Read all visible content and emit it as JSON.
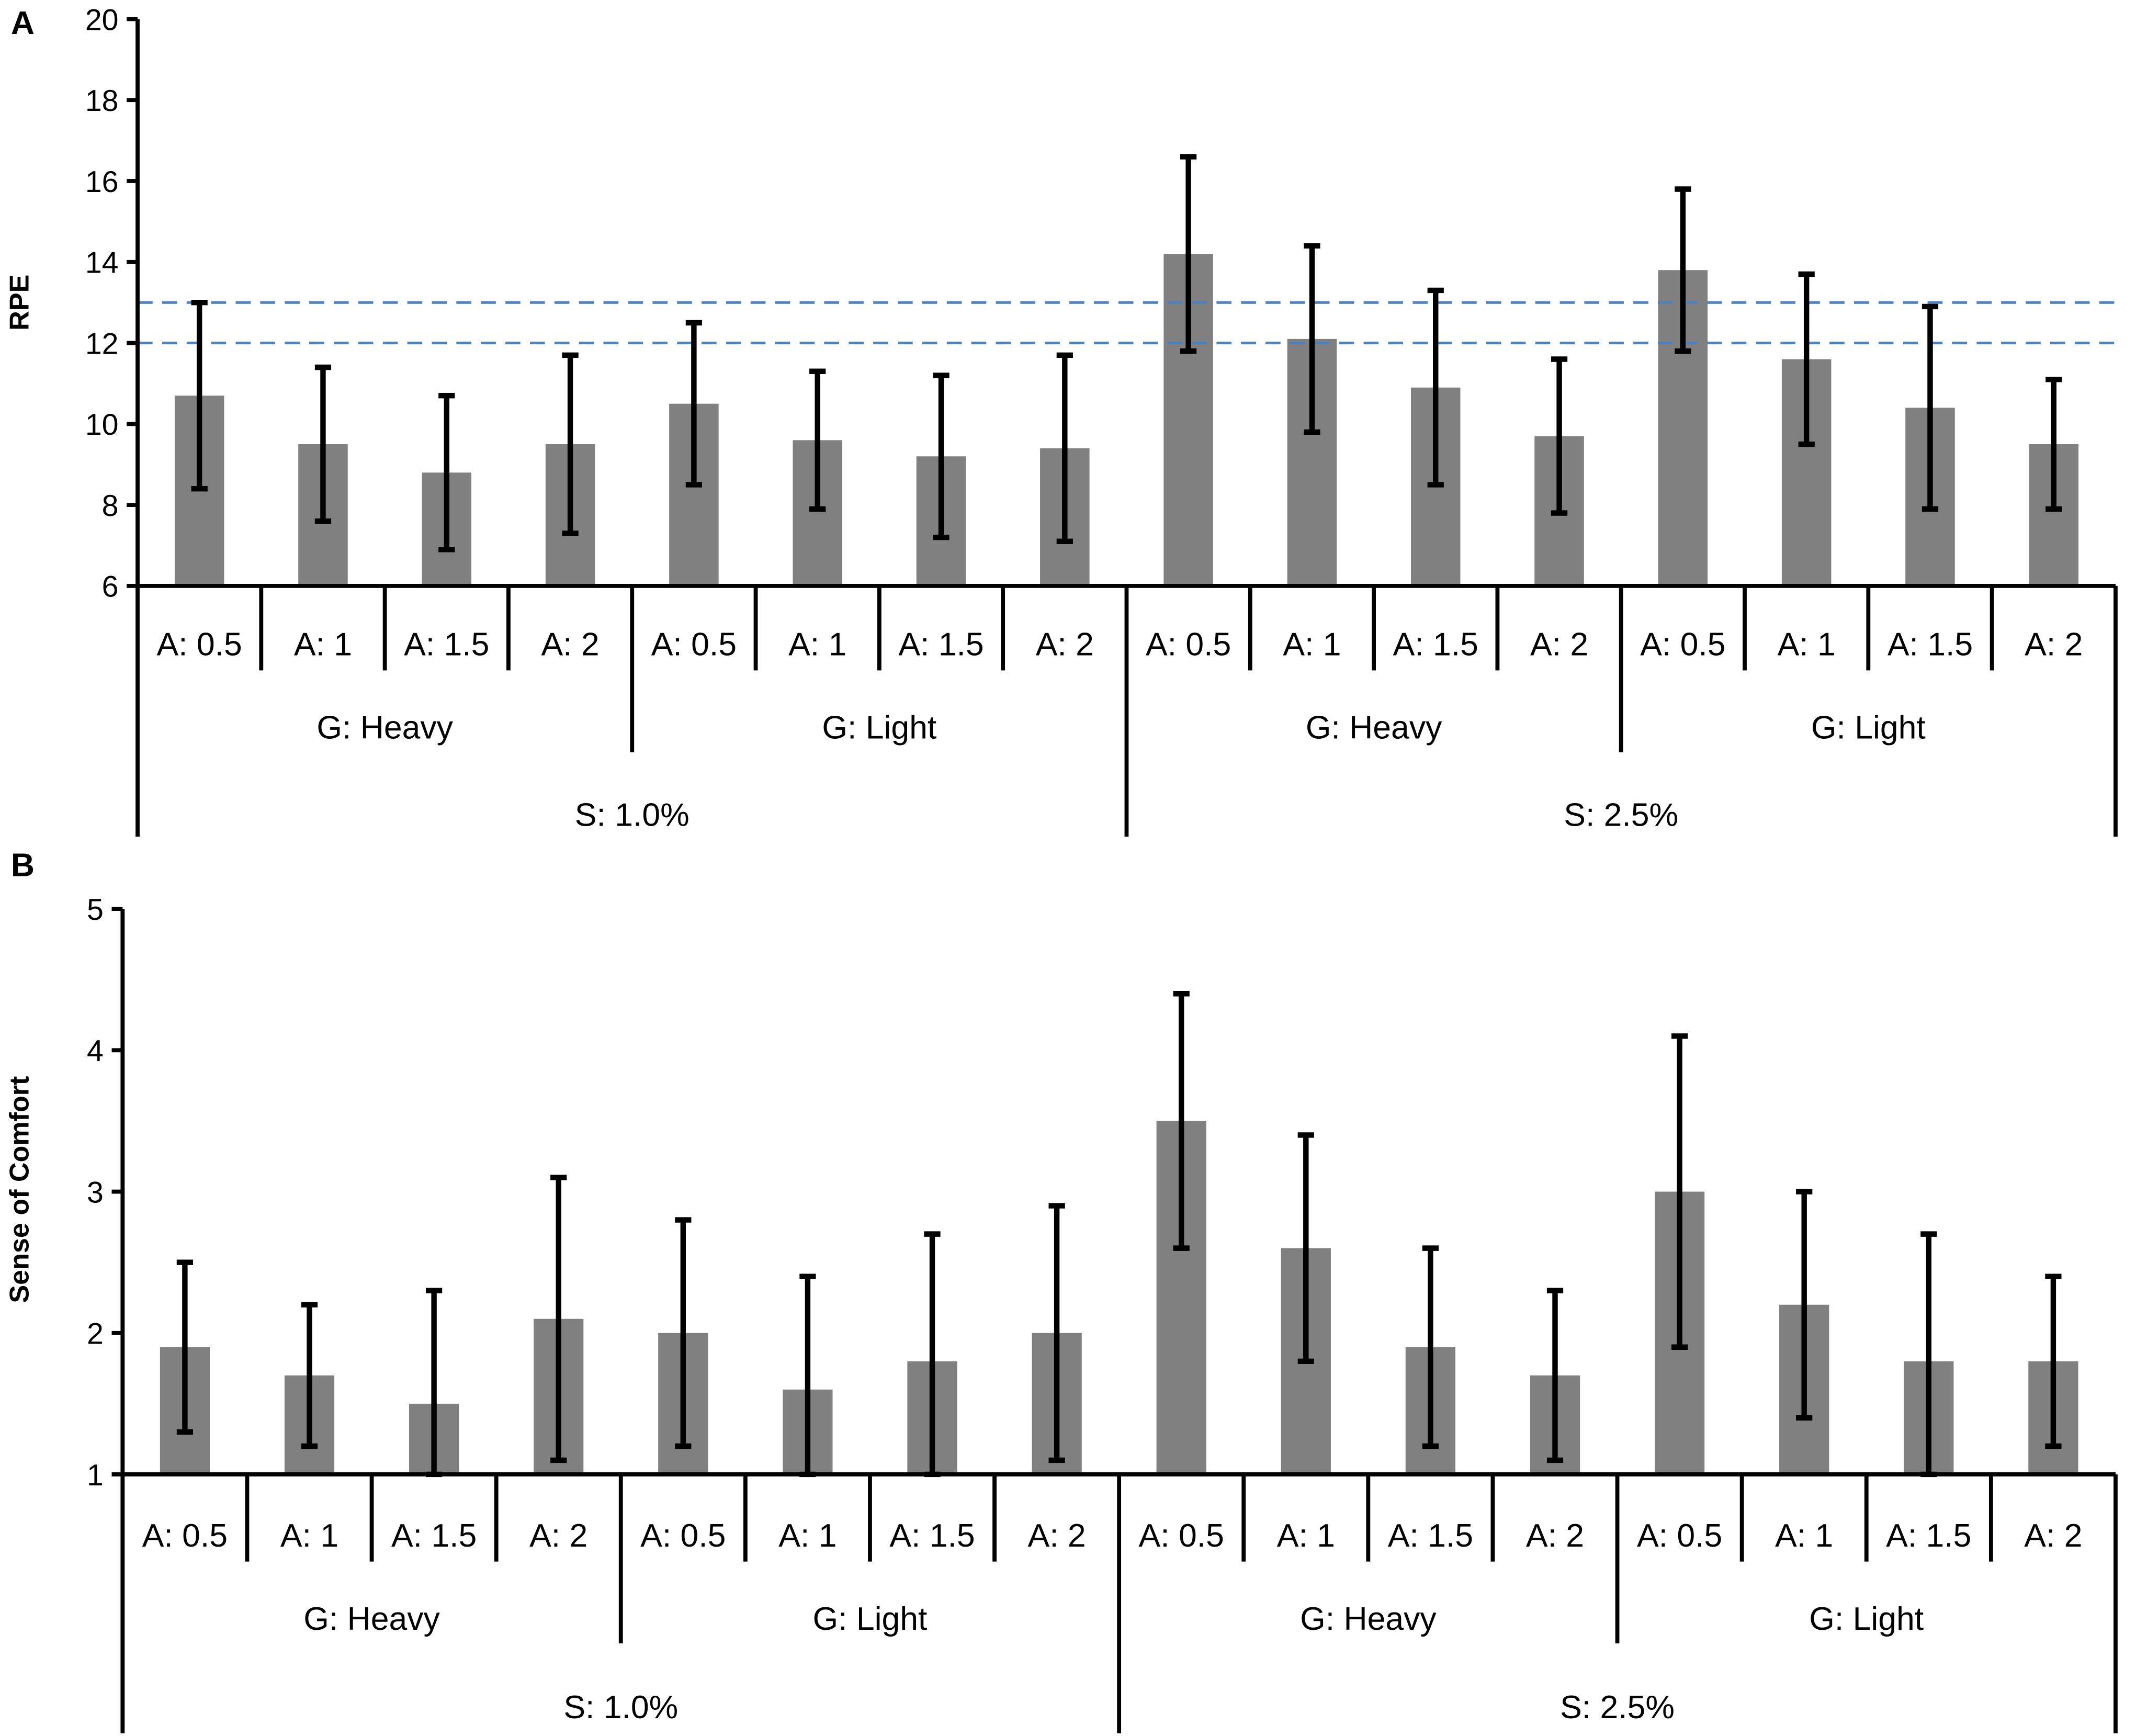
{
  "colors": {
    "bar": "#808080",
    "error_bar": "#000000",
    "axis": "#000000",
    "reference_line": "#4F81BD"
  },
  "x_categories": {
    "A": [
      "A: 0.5",
      "A: 1",
      "A: 1.5",
      "A: 2",
      "A: 0.5",
      "A: 1",
      "A: 1.5",
      "A: 2",
      "A: 0.5",
      "A: 1",
      "A: 1.5",
      "A: 2",
      "A: 0.5",
      "A: 1",
      "A: 1.5",
      "A: 2"
    ],
    "G": [
      "G: Heavy",
      "G: Light",
      "G: Heavy",
      "G: Light"
    ],
    "S": [
      "S: 1.0%",
      "S: 2.5%"
    ]
  },
  "chart_data": [
    {
      "type": "bar",
      "panel_label": "A",
      "ylabel": "RPE",
      "xlabel": "",
      "ylim": [
        6,
        20
      ],
      "yticks": [
        6,
        8,
        10,
        12,
        14,
        16,
        18,
        20
      ],
      "grid": false,
      "values": [
        10.7,
        9.5,
        8.8,
        9.5,
        10.5,
        9.6,
        9.2,
        9.4,
        14.2,
        12.1,
        10.9,
        9.7,
        13.8,
        11.6,
        10.4,
        9.5
      ],
      "error_low": [
        8.4,
        7.6,
        6.9,
        7.3,
        8.5,
        7.9,
        7.2,
        7.1,
        11.8,
        9.8,
        8.5,
        7.8,
        11.8,
        9.5,
        7.9,
        7.9
      ],
      "error_high": [
        13.0,
        11.4,
        10.7,
        11.7,
        12.5,
        11.3,
        11.2,
        11.7,
        16.6,
        14.4,
        13.3,
        11.6,
        15.8,
        13.7,
        12.9,
        11.1
      ],
      "reference_lines": [
        12,
        13
      ]
    },
    {
      "type": "bar",
      "panel_label": "B",
      "ylabel": "Sense of Comfort",
      "xlabel": "",
      "ylim": [
        1,
        5
      ],
      "yticks": [
        1,
        2,
        3,
        4,
        5
      ],
      "grid": false,
      "values": [
        1.9,
        1.7,
        1.5,
        2.1,
        2.0,
        1.6,
        1.8,
        2.0,
        3.5,
        2.6,
        1.9,
        1.7,
        3.0,
        2.2,
        1.8,
        1.8
      ],
      "error_low": [
        1.3,
        1.2,
        1.0,
        1.1,
        1.2,
        1.0,
        1.0,
        1.1,
        2.6,
        1.8,
        1.2,
        1.1,
        1.9,
        1.4,
        1.0,
        1.2
      ],
      "error_high": [
        2.5,
        2.2,
        2.3,
        3.1,
        2.8,
        2.4,
        2.7,
        2.9,
        4.4,
        3.4,
        2.6,
        2.3,
        4.1,
        3.0,
        2.7,
        2.4
      ],
      "reference_lines": []
    }
  ]
}
